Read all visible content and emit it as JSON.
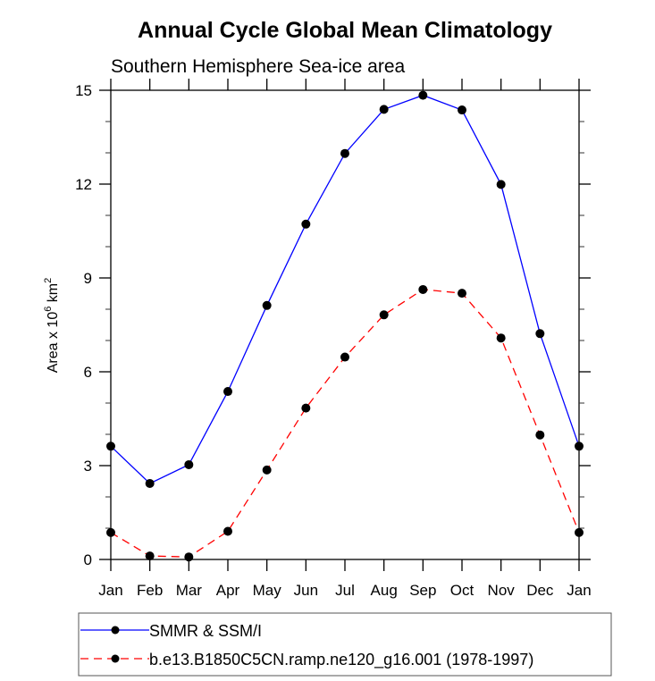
{
  "chart_data": {
    "type": "line",
    "title": "Annual Cycle Global Mean Climatology",
    "subtitle": "Southern Hemisphere Sea-ice area",
    "xlabel": "",
    "ylabel": {
      "prefix": "Area x 10",
      "exponent": "6",
      "unit": " km",
      "unit_exponent": "2"
    },
    "categories": [
      "Jan",
      "Feb",
      "Mar",
      "Apr",
      "May",
      "Jun",
      "Jul",
      "Aug",
      "Sep",
      "Oct",
      "Nov",
      "Dec",
      "Jan"
    ],
    "ylim": [
      0,
      15
    ],
    "yticks": [
      0,
      3,
      6,
      9,
      12,
      15
    ],
    "y_minor_step": 1,
    "grid": false,
    "legend_position": "bottom",
    "series": [
      {
        "name": "SMMR & SSM/I",
        "color": "#0000ff",
        "dash": "solid",
        "marker": "filled-circle",
        "marker_color": "#000000",
        "values": [
          3.62,
          2.43,
          3.03,
          5.37,
          8.12,
          10.72,
          12.98,
          14.39,
          14.84,
          14.37,
          11.99,
          7.22,
          3.62
        ]
      },
      {
        "name": "b.e13.B1850C5CN.ramp.ne120_g16.001 (1978-1997)",
        "color": "#ff0000",
        "dash": "dashed",
        "marker": "filled-circle",
        "marker_color": "#000000",
        "values": [
          0.86,
          0.11,
          0.08,
          0.9,
          2.86,
          4.84,
          6.47,
          7.82,
          8.63,
          8.51,
          7.08,
          3.98,
          0.86
        ]
      }
    ]
  }
}
